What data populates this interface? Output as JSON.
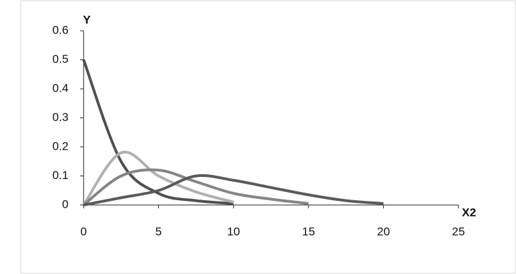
{
  "chart_data": {
    "type": "line",
    "y_label": "Y",
    "x_label": "X2",
    "x": [
      0,
      2.5,
      5,
      7.5,
      10,
      12.5,
      15,
      17.5,
      20
    ],
    "series": [
      {
        "color": "#505050",
        "values": [
          0.5,
          0.15,
          0.04,
          0.015,
          0.005,
          null,
          null,
          null,
          null
        ]
      },
      {
        "color": "#b0b0b0",
        "values": [
          0,
          0.18,
          0.1,
          0.045,
          0.01,
          null,
          null,
          null,
          null
        ]
      },
      {
        "color": "#858585",
        "values": [
          0,
          0.1,
          0.12,
          0.08,
          0.04,
          0.02,
          0.005,
          null,
          null
        ]
      },
      {
        "color": "#5a5a5a",
        "values": [
          0,
          0.025,
          0.05,
          0.1,
          0.085,
          0.06,
          0.035,
          0.015,
          0.005
        ]
      }
    ],
    "xlim": [
      0,
      25
    ],
    "xticks": [
      0,
      5,
      10,
      15,
      20,
      25
    ],
    "ylim": [
      0,
      0.6
    ],
    "yticks": [
      0,
      0.1,
      0.2,
      0.3,
      0.4,
      0.5,
      0.6
    ],
    "grid": false
  }
}
